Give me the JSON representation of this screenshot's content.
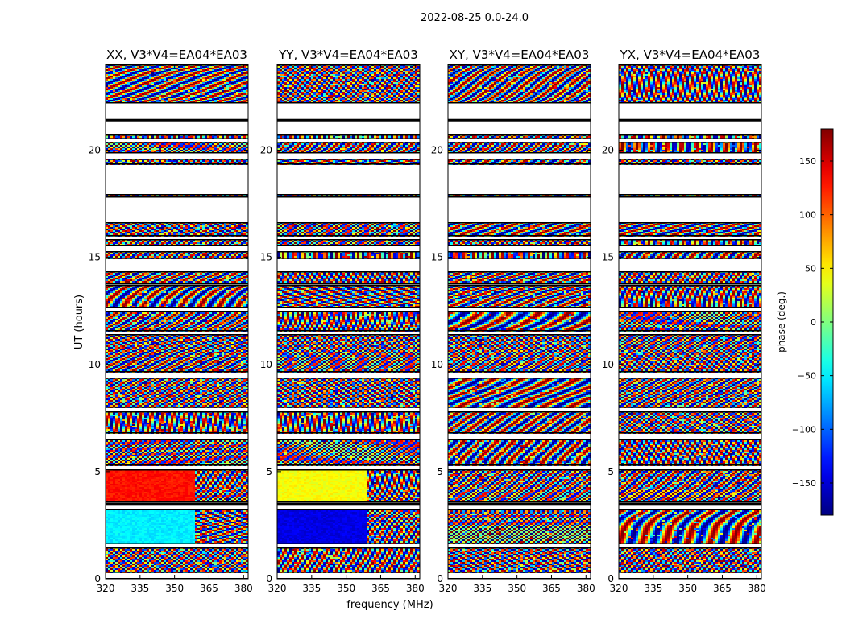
{
  "figure": {
    "suptitle": "2022-08-25 0.0-24.0"
  },
  "chart_data": {
    "type": "heatmap",
    "quantity": "phase",
    "xlabel": "frequency (MHz)",
    "ylabel": "UT (hours)",
    "xlim": [
      320,
      382
    ],
    "ylim": [
      0,
      24
    ],
    "xticks": [
      "320",
      "335",
      "350",
      "365",
      "380"
    ],
    "xtick_values": [
      320,
      335,
      350,
      365,
      380
    ],
    "yticks": [
      "0",
      "5",
      "10",
      "15",
      "20"
    ],
    "ytick_values": [
      0,
      5,
      10,
      15,
      20
    ],
    "panels": [
      {
        "title": "XX, V3*V4=EA04*EA03",
        "pol": "XX"
      },
      {
        "title": "YY, V3*V4=EA04*EA03",
        "pol": "YY"
      },
      {
        "title": "XY, V3*V4=EA04*EA03",
        "pol": "XY"
      },
      {
        "title": "YX, V3*V4=EA04*EA03",
        "pol": "YX"
      }
    ],
    "colorbar": {
      "label": "phase (deg.)",
      "range": [
        -180,
        180
      ],
      "colormap": "jet",
      "ticks": [
        "150",
        "100",
        "50",
        "0",
        "−50",
        "−100",
        "−150"
      ],
      "tick_values": [
        150,
        100,
        50,
        0,
        -50,
        -100,
        -150
      ]
    },
    "data_blocks_hours": [
      [
        0.0,
        0.05
      ],
      [
        0.3,
        1.45
      ],
      [
        1.65,
        3.25
      ],
      [
        3.6,
        5.1
      ],
      [
        5.3,
        6.55
      ],
      [
        6.8,
        7.8
      ],
      [
        8.0,
        9.4
      ],
      [
        9.65,
        11.4
      ],
      [
        11.55,
        12.5
      ],
      [
        12.65,
        13.7
      ],
      [
        13.75,
        14.35
      ],
      [
        14.95,
        15.3
      ],
      [
        15.55,
        15.85
      ],
      [
        16.0,
        16.65
      ],
      [
        17.8,
        17.95
      ],
      [
        19.35,
        19.6
      ],
      [
        19.85,
        20.4
      ],
      [
        20.55,
        20.75
      ],
      [
        22.2,
        24.0
      ]
    ],
    "missing_data_color": "#ffffff",
    "separator_color": "#000000"
  }
}
